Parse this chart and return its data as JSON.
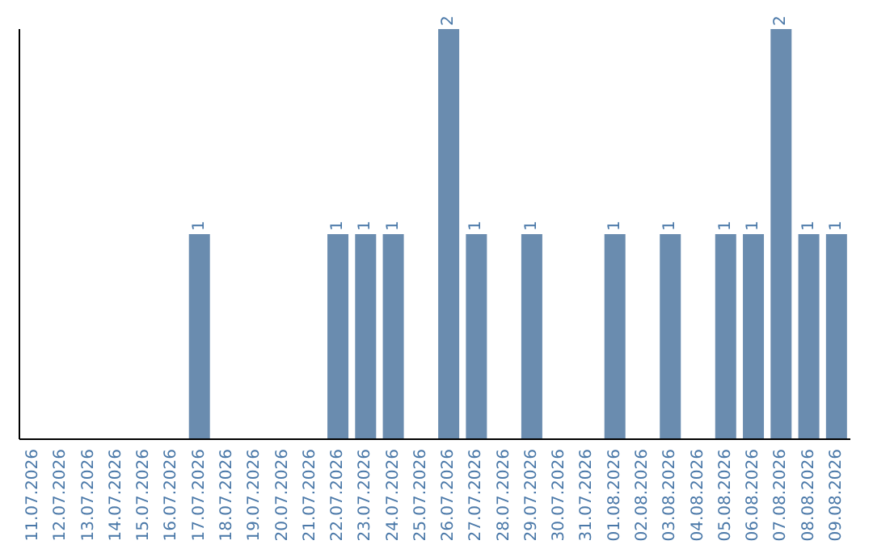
{
  "chart_data": {
    "type": "bar",
    "categories": [
      "11.07.2026",
      "12.07.2026",
      "13.07.2026",
      "14.07.2026",
      "15.07.2026",
      "16.07.2026",
      "17.07.2026",
      "18.07.2026",
      "19.07.2026",
      "20.07.2026",
      "21.07.2026",
      "22.07.2026",
      "23.07.2026",
      "24.07.2026",
      "25.07.2026",
      "26.07.2026",
      "27.07.2026",
      "28.07.2026",
      "29.07.2026",
      "30.07.2026",
      "31.07.2026",
      "01.08.2026",
      "02.08.2026",
      "03.08.2026",
      "04.08.2026",
      "05.08.2026",
      "06.08.2026",
      "07.08.2026",
      "08.08.2026",
      "09.08.2026"
    ],
    "values": [
      0,
      0,
      0,
      0,
      0,
      0,
      1,
      0,
      0,
      0,
      0,
      1,
      1,
      1,
      0,
      2,
      1,
      0,
      1,
      0,
      0,
      1,
      0,
      1,
      0,
      1,
      1,
      2,
      1,
      1
    ],
    "value_labels": [
      null,
      null,
      null,
      null,
      null,
      null,
      "1",
      null,
      null,
      null,
      null,
      "1",
      "1",
      "1",
      null,
      "2",
      "1",
      null,
      "1",
      null,
      null,
      "1",
      null,
      "1",
      null,
      "1",
      "1",
      "2",
      "1",
      "1"
    ],
    "color": "#6a8caf",
    "ylim": [
      0,
      2
    ],
    "tick_labels": "x",
    "grid": false,
    "legend": false
  }
}
